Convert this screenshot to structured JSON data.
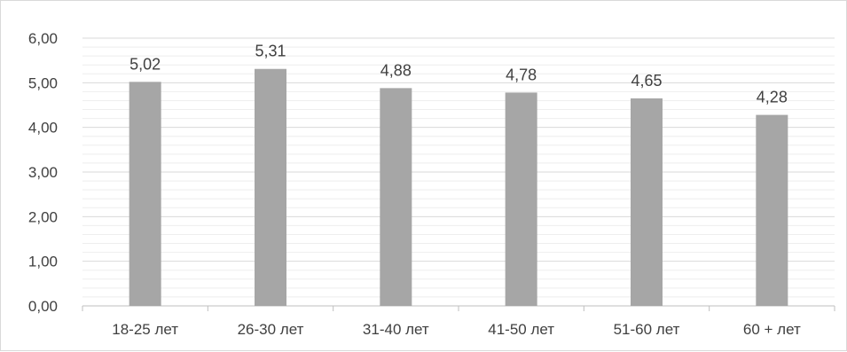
{
  "chart_data": {
    "type": "bar",
    "categories": [
      "18-25 лет",
      "26-30 лет",
      "31-40 лет",
      "41-50 лет",
      "51-60 лет",
      "60 + лет"
    ],
    "values": [
      5.02,
      5.31,
      4.88,
      4.78,
      4.65,
      4.28
    ],
    "value_labels": [
      "5,02",
      "5,31",
      "4,88",
      "4,78",
      "4,65",
      "4,28"
    ],
    "ylim": [
      0,
      6
    ],
    "y_ticks": [
      "0,00",
      "1,00",
      "2,00",
      "3,00",
      "4,00",
      "5,00",
      "6,00"
    ],
    "minor_grid_step": 0.2,
    "grid": true,
    "legend": "none",
    "title": "",
    "xlabel": "",
    "ylabel": "",
    "colors": {
      "bar": "#a6a6a6",
      "grid": "#d9d9d9",
      "minor_grid": "#eeeeee",
      "text": "#404040",
      "axis": "#bfbfbf"
    }
  }
}
